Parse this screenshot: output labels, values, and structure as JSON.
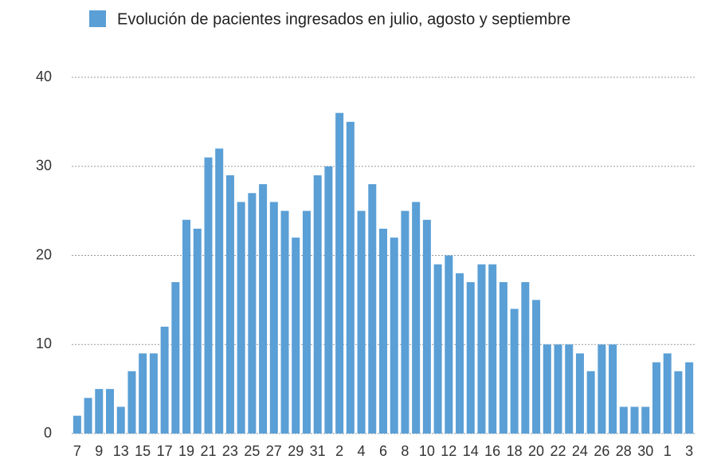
{
  "chart_data": {
    "type": "bar",
    "series": [
      {
        "name": "Evolución de pacientes ingresados en julio, agosto y septiembre",
        "color": "#5a9fd6",
        "values": [
          2,
          4,
          5,
          5,
          3,
          7,
          9,
          9,
          12,
          17,
          24,
          23,
          31,
          32,
          29,
          26,
          27,
          28,
          26,
          25,
          22,
          25,
          29,
          30,
          36,
          35,
          25,
          28,
          23,
          22,
          25,
          26,
          24,
          19,
          20,
          18,
          17,
          19,
          19,
          17,
          14,
          17,
          15,
          10,
          10,
          10,
          9,
          7,
          10,
          10,
          3,
          3,
          3,
          8,
          9,
          7,
          8
        ]
      }
    ],
    "categories": [
      "7",
      null,
      "9",
      null,
      "13",
      null,
      "15",
      null,
      "17",
      null,
      "19",
      null,
      "21",
      null,
      "23",
      null,
      "25",
      null,
      "27",
      null,
      "29",
      null,
      "31",
      null,
      "2",
      null,
      "4",
      null,
      "6",
      null,
      "8",
      null,
      "10",
      null,
      "12",
      null,
      "14",
      null,
      "16",
      null,
      "18",
      null,
      "20",
      null,
      "22",
      null,
      "24",
      null,
      "26",
      null,
      "28",
      null,
      "30",
      null,
      "1",
      null,
      "3"
    ],
    "ylim": [
      0,
      40
    ],
    "yticks": [
      0,
      10,
      20,
      30,
      40
    ],
    "grid": true
  }
}
